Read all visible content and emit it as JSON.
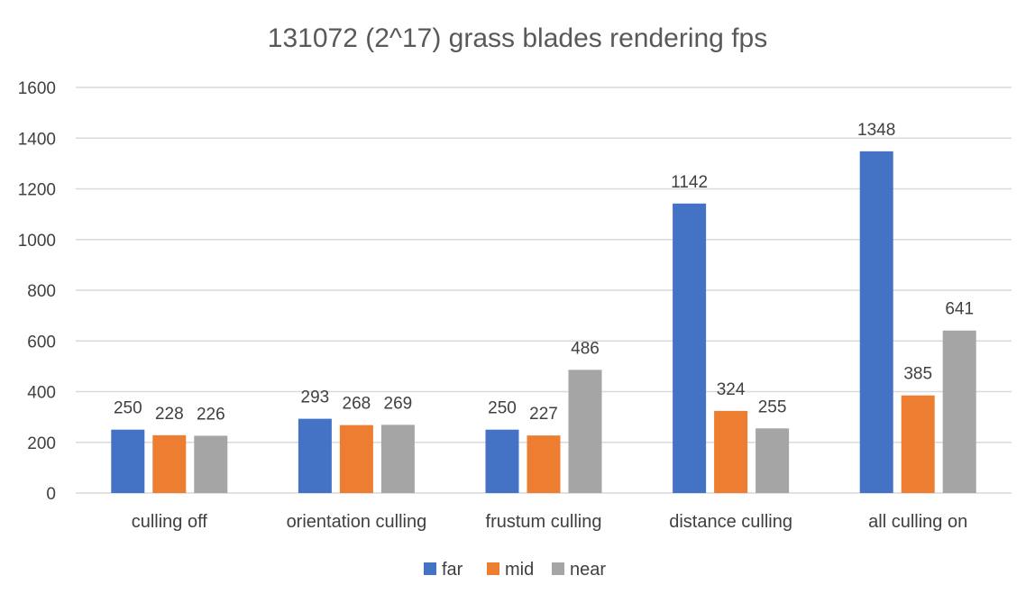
{
  "chart_data": {
    "type": "bar",
    "title": "131072 (2^17) grass blades rendering fps",
    "xlabel": "",
    "ylabel": "",
    "categories": [
      "culling off",
      "orientation culling",
      "frustum culling",
      "distance culling",
      "all culling on"
    ],
    "series": [
      {
        "name": "far",
        "color": "#4472C4",
        "values": [
          250,
          293,
          250,
          1142,
          1348
        ]
      },
      {
        "name": "mid",
        "color": "#ED7D31",
        "values": [
          228,
          268,
          227,
          324,
          385
        ]
      },
      {
        "name": "near",
        "color": "#A5A5A5",
        "values": [
          226,
          269,
          486,
          255,
          641
        ]
      }
    ],
    "ylim": [
      0,
      1600
    ],
    "yticks": [
      0,
      200,
      400,
      600,
      800,
      1000,
      1200,
      1400,
      1600
    ],
    "grid": true,
    "legend_position": "bottom",
    "data_labels": true
  }
}
